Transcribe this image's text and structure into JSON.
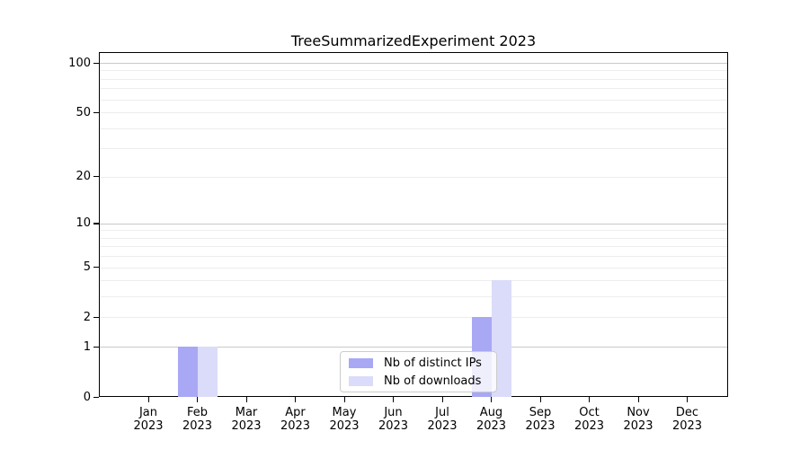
{
  "chart_data": {
    "type": "bar",
    "title": "TreeSummarizedExperiment 2023",
    "categories": [
      "Jan 2023",
      "Feb 2023",
      "Mar 2023",
      "Apr 2023",
      "May 2023",
      "Jun 2023",
      "Jul 2023",
      "Aug 2023",
      "Sep 2023",
      "Oct 2023",
      "Nov 2023",
      "Dec 2023"
    ],
    "month_labels": [
      "Jan",
      "Feb",
      "Mar",
      "Apr",
      "May",
      "Jun",
      "Jul",
      "Aug",
      "Sep",
      "Oct",
      "Nov",
      "Dec"
    ],
    "year_label": "2023",
    "series": [
      {
        "name": "Nb of distinct IPs",
        "color": "#a8a8f5",
        "values": [
          0,
          1,
          0,
          0,
          0,
          0,
          0,
          2,
          0,
          0,
          0,
          0
        ]
      },
      {
        "name": "Nb of downloads",
        "color": "#dbdbfa",
        "values": [
          0,
          1,
          0,
          0,
          0,
          0,
          0,
          4,
          0,
          0,
          0,
          0
        ]
      }
    ],
    "yscale": "log1p",
    "ylim": [
      0,
      100
    ],
    "y_tick_labels": [
      0,
      1,
      2,
      5,
      10,
      20,
      50,
      100
    ],
    "y_major_gridlines": [
      1,
      10,
      100
    ],
    "y_minor_gridlines": [
      2,
      3,
      4,
      5,
      6,
      7,
      8,
      9,
      20,
      30,
      40,
      50,
      60,
      70,
      80,
      90
    ],
    "grid": "horizontal",
    "legend_position": "inside lower-center",
    "colors": {
      "grid_major": "#c9c9c9",
      "grid_minor": "#ededed",
      "axis": "#000000",
      "background": "#ffffff"
    }
  }
}
